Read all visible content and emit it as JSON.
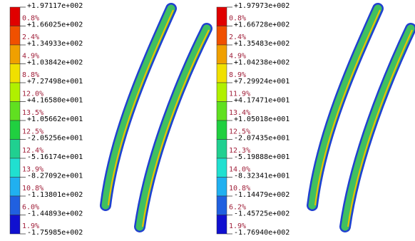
{
  "panels": [
    {
      "levels": [
        "+1.97117e+002",
        "+1.66025e+002",
        "+1.34933e+002",
        "+1.03842e+002",
        "+7.27498e+001",
        "+4.16580e+001",
        "+1.05662e+001",
        "-2.05256e+001",
        "-5.16174e+001",
        "-8.27092e+001",
        "-1.13801e+002",
        "-1.44893e+002",
        "-1.75985e+002"
      ],
      "percents": [
        "0.8%",
        "2.4%",
        "4.9%",
        "8.8%",
        "12.0%",
        "13.5%",
        "12.5%",
        "12.4%",
        "13.9%",
        "10.8%",
        "6.0%",
        "1.9%"
      ]
    },
    {
      "levels": [
        "+1.97973e+002",
        "+1.66728e+002",
        "+1.35483e+002",
        "+1.04238e+002",
        "+7.29924e+001",
        "+4.17471e+001",
        "+1.05018e+001",
        "-2.07435e+001",
        "-5.19888e+001",
        "-8.32341e+001",
        "-1.14479e+002",
        "-1.45725e+002",
        "-1.76940e+002"
      ],
      "percents": [
        "0.8%",
        "2.4%",
        "4.9%",
        "8.9%",
        "11.9%",
        "13.4%",
        "12.5%",
        "12.3%",
        "14.0%",
        "10.8%",
        "6.2%",
        "1.9%"
      ]
    }
  ]
}
